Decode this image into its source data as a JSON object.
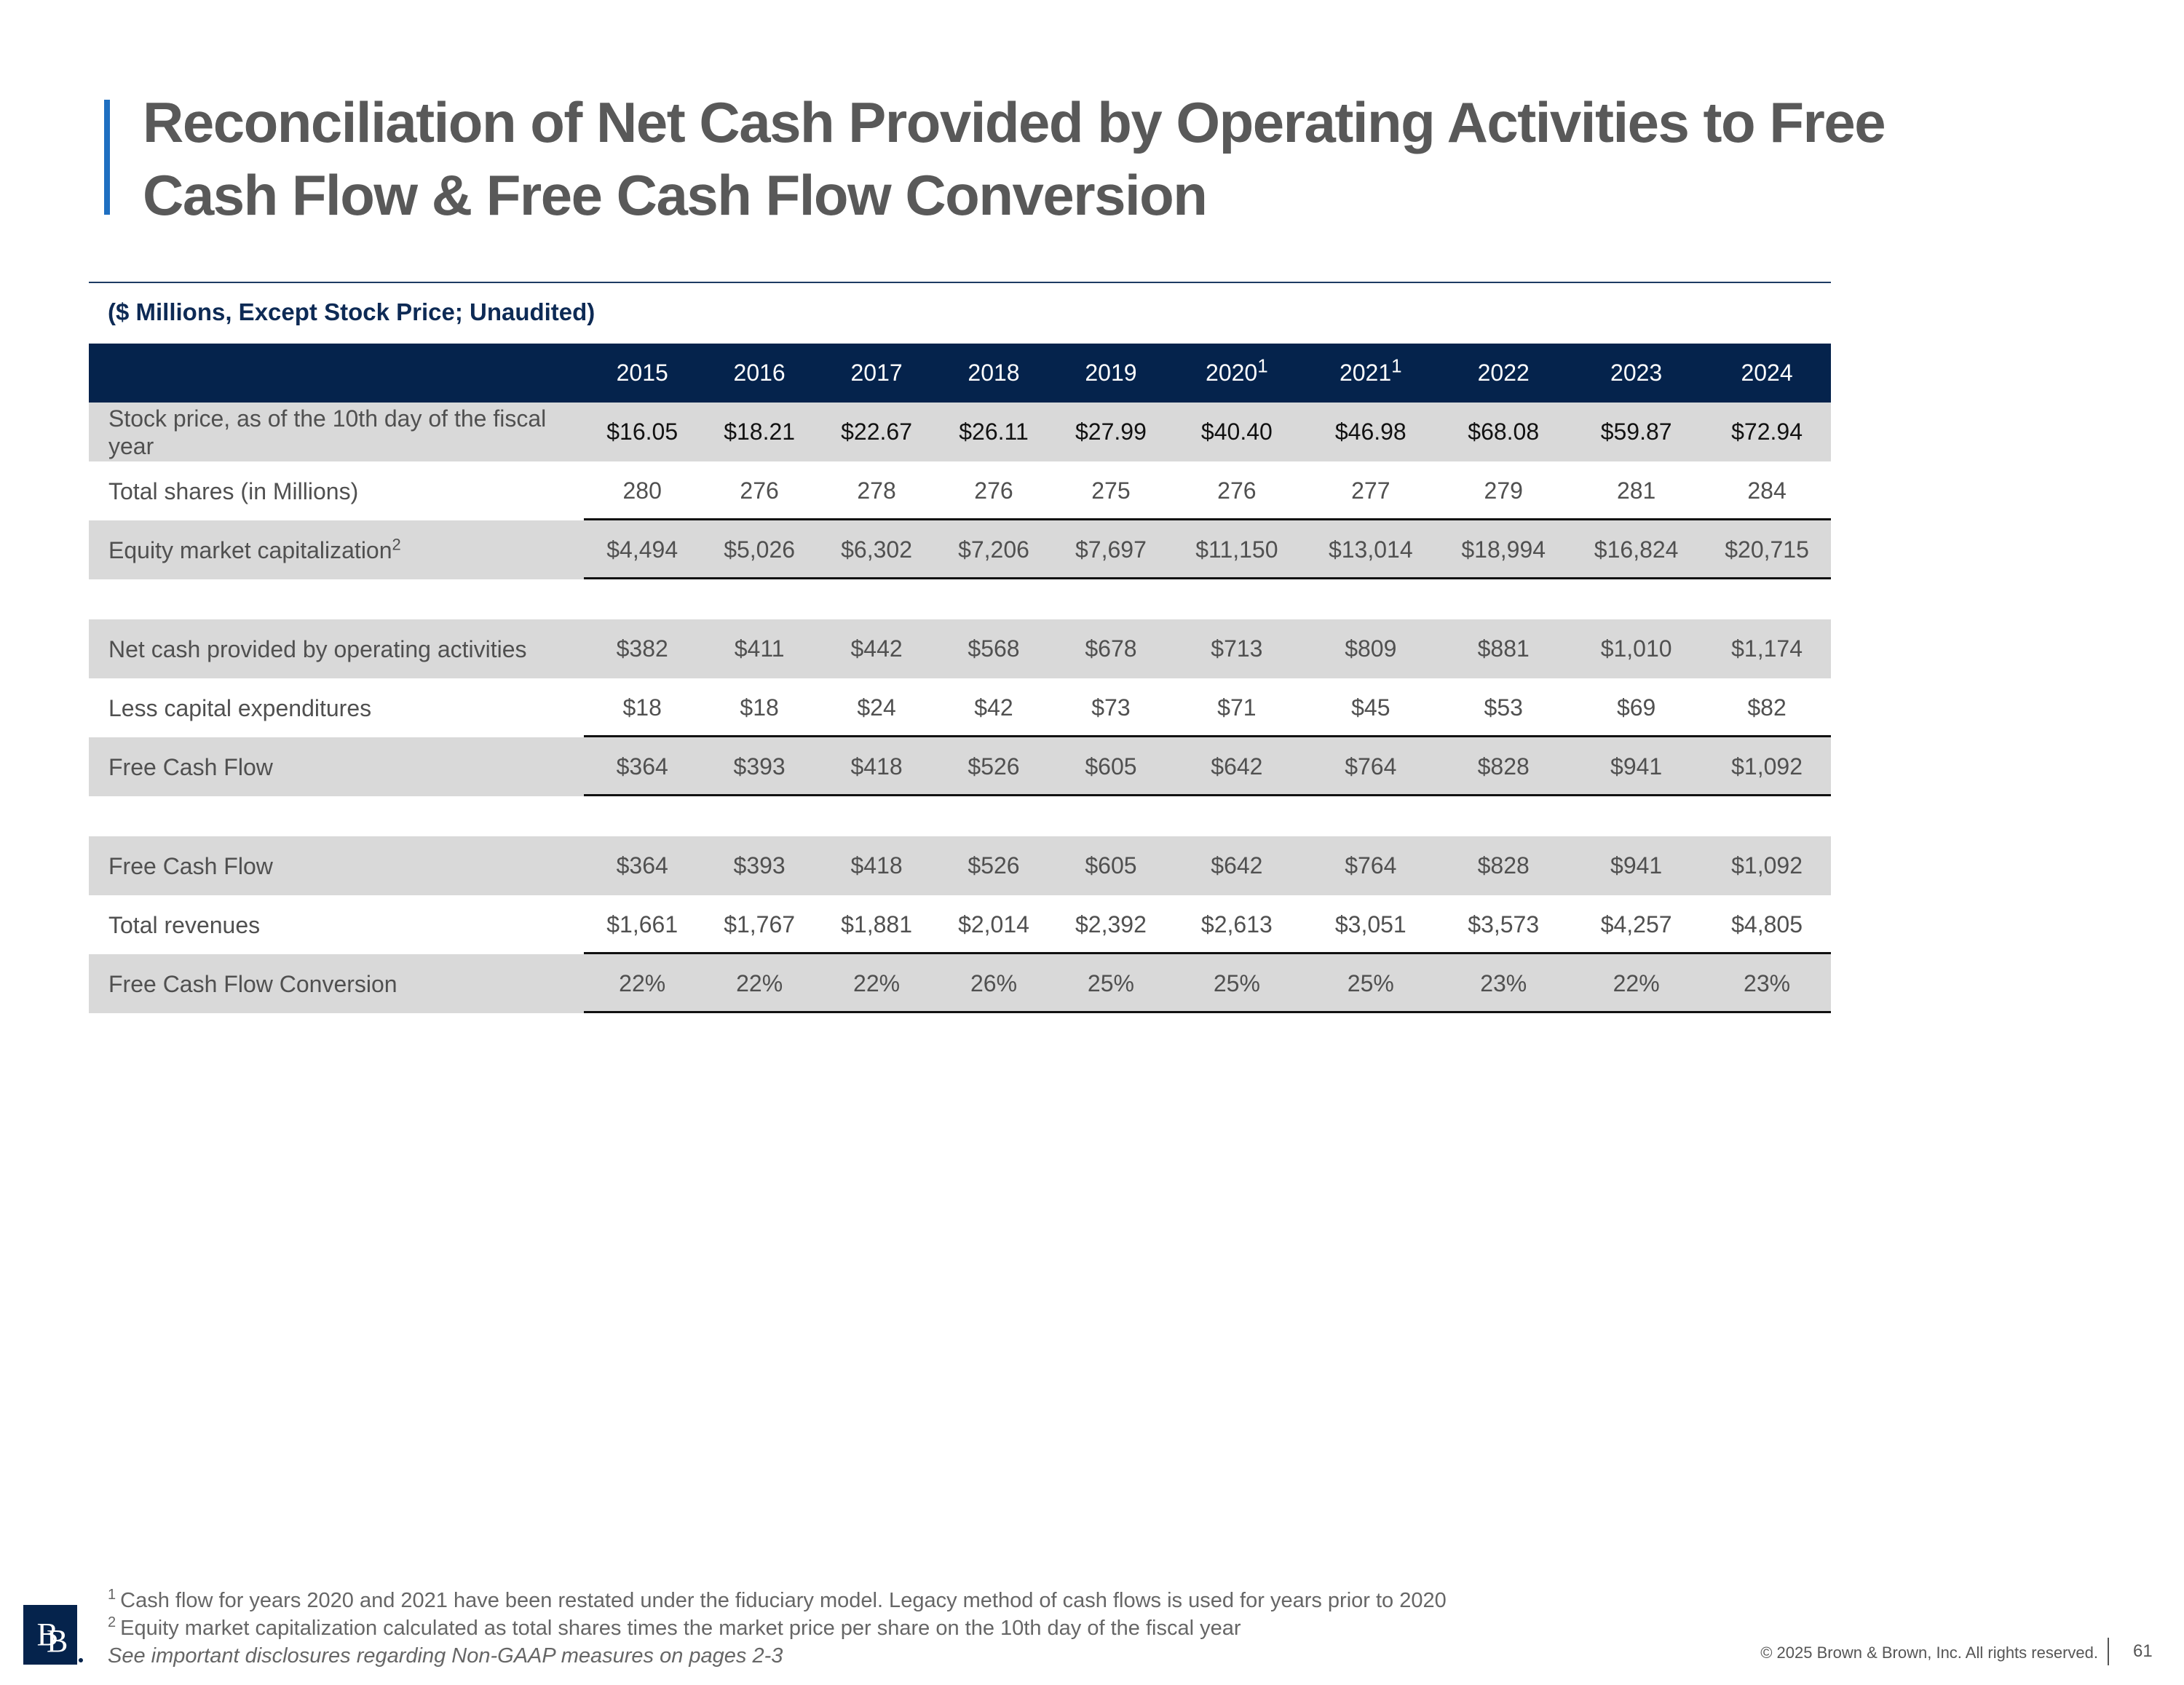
{
  "page": {
    "title_lines": [
      "Reconciliation of Net Cash Provided by Operating Activities to Free",
      "Cash Flow & Free Cash Flow Conversion"
    ],
    "subtitle": "($ Millions, Except Stock Price; Unaudited)"
  },
  "table": {
    "years": [
      {
        "label": "2015",
        "note": ""
      },
      {
        "label": "2016",
        "note": ""
      },
      {
        "label": "2017",
        "note": ""
      },
      {
        "label": "2018",
        "note": ""
      },
      {
        "label": "2019",
        "note": ""
      },
      {
        "label": "2020",
        "note": "1"
      },
      {
        "label": "2021",
        "note": "1"
      },
      {
        "label": "2022",
        "note": ""
      },
      {
        "label": "2023",
        "note": ""
      },
      {
        "label": "2024",
        "note": ""
      }
    ],
    "rows": [
      {
        "label": "Stock price, as of the 10th day of the fiscal year",
        "note": "",
        "values": [
          "$16.05",
          "$18.21",
          "$22.67",
          "$26.11",
          "$27.99",
          "$40.40",
          "$46.98",
          "$68.08",
          "$59.87",
          "$72.94"
        ]
      },
      {
        "label": "Total shares (in Millions)",
        "note": "",
        "values": [
          "280",
          "276",
          "278",
          "276",
          "275",
          "276",
          "277",
          "279",
          "281",
          "284"
        ]
      },
      {
        "label": "Equity market capitalization",
        "note": "2",
        "values": [
          "$4,494",
          "$5,026",
          "$6,302",
          "$7,206",
          "$7,697",
          "$11,150",
          "$13,014",
          "$18,994",
          "$16,824",
          "$20,715"
        ]
      },
      {
        "label": "Net cash provided by operating activities",
        "note": "",
        "values": [
          "$382",
          "$411",
          "$442",
          "$568",
          "$678",
          "$713",
          "$809",
          "$881",
          "$1,010",
          "$1,174"
        ]
      },
      {
        "label": "Less capital expenditures",
        "note": "",
        "values": [
          "$18",
          "$18",
          "$24",
          "$42",
          "$73",
          "$71",
          "$45",
          "$53",
          "$69",
          "$82"
        ]
      },
      {
        "label": "Free Cash Flow",
        "note": "",
        "values": [
          "$364",
          "$393",
          "$418",
          "$526",
          "$605",
          "$642",
          "$764",
          "$828",
          "$941",
          "$1,092"
        ]
      },
      {
        "label": "Free Cash Flow",
        "note": "",
        "values": [
          "$364",
          "$393",
          "$418",
          "$526",
          "$605",
          "$642",
          "$764",
          "$828",
          "$941",
          "$1,092"
        ]
      },
      {
        "label": "Total revenues",
        "note": "",
        "values": [
          "$1,661",
          "$1,767",
          "$1,881",
          "$2,014",
          "$2,392",
          "$2,613",
          "$3,051",
          "$3,573",
          "$4,257",
          "$4,805"
        ]
      },
      {
        "label": "Free Cash Flow Conversion",
        "note": "",
        "values": [
          "22%",
          "22%",
          "22%",
          "26%",
          "25%",
          "25%",
          "25%",
          "23%",
          "22%",
          "23%"
        ]
      }
    ]
  },
  "footnotes": {
    "fn1_mark": "1",
    "fn1": "Cash flow for years 2020 and 2021 have been restated under the fiduciary model. Legacy method of cash flows is used for years prior to 2020",
    "fn2_mark": "2",
    "fn2": "Equity market capitalization calculated as total shares times the market price per share on the 10th day of the fiscal year",
    "disclosure": "See important disclosures regarding Non-GAAP measures on pages 2-3"
  },
  "footer": {
    "logo_letters": [
      "B",
      "B"
    ],
    "copyright": "© 2025 Brown & Brown, Inc. All rights reserved.",
    "page_number": "61"
  }
}
